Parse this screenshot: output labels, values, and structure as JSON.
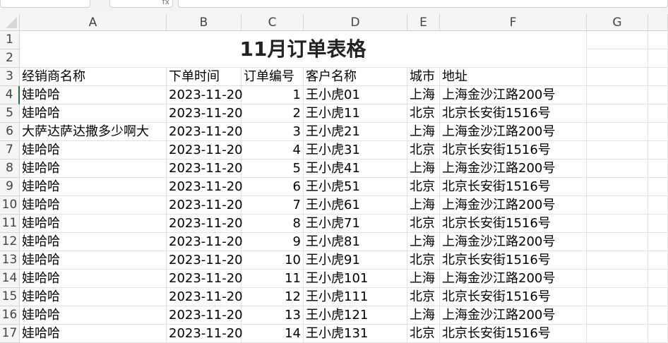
{
  "formula_bar": {
    "name_box": "",
    "fx_label": "fx",
    "content": ""
  },
  "columns": [
    "A",
    "B",
    "C",
    "D",
    "E",
    "F",
    "G"
  ],
  "title": "11月订单表格",
  "headers": [
    "经销商名称",
    "下单时间",
    "订单编号",
    "客户名称",
    "城市",
    "地址"
  ],
  "rows": [
    [
      "娃哈哈",
      "2023-11-20",
      "1",
      "王小虎01",
      "上海",
      "上海金沙江路200号"
    ],
    [
      "娃哈哈",
      "2023-11-20",
      "2",
      "王小虎11",
      "北京",
      "北京长安街1516号"
    ],
    [
      "大萨达萨达撒多少啊大",
      "2023-11-20",
      "3",
      "王小虎21",
      "上海",
      "上海金沙江路200号"
    ],
    [
      "娃哈哈",
      "2023-11-20",
      "4",
      "王小虎31",
      "北京",
      "北京长安街1516号"
    ],
    [
      "娃哈哈",
      "2023-11-20",
      "5",
      "王小虎41",
      "上海",
      "上海金沙江路200号"
    ],
    [
      "娃哈哈",
      "2023-11-20",
      "6",
      "王小虎51",
      "北京",
      "北京长安街1516号"
    ],
    [
      "娃哈哈",
      "2023-11-20",
      "7",
      "王小虎61",
      "上海",
      "上海金沙江路200号"
    ],
    [
      "娃哈哈",
      "2023-11-20",
      "8",
      "王小虎71",
      "北京",
      "北京长安街1516号"
    ],
    [
      "娃哈哈",
      "2023-11-20",
      "9",
      "王小虎81",
      "上海",
      "上海金沙江路200号"
    ],
    [
      "娃哈哈",
      "2023-11-20",
      "10",
      "王小虎91",
      "北京",
      "北京长安街1516号"
    ],
    [
      "娃哈哈",
      "2023-11-20",
      "11",
      "王小虎101",
      "上海",
      "上海金沙江路200号"
    ],
    [
      "娃哈哈",
      "2023-11-20",
      "12",
      "王小虎111",
      "北京",
      "北京长安街1516号"
    ],
    [
      "娃哈哈",
      "2023-11-20",
      "13",
      "王小虎121",
      "上海",
      "上海金沙江路200号"
    ],
    [
      "娃哈哈",
      "2023-11-20",
      "14",
      "王小虎131",
      "北京",
      "北京长安街1516号"
    ]
  ],
  "row_numbers": [
    "1",
    "2",
    "3",
    "4",
    "5",
    "6",
    "7",
    "8",
    "9",
    "10",
    "11",
    "12",
    "13",
    "14",
    "15",
    "16",
    "17"
  ],
  "selection_color": "#217346"
}
